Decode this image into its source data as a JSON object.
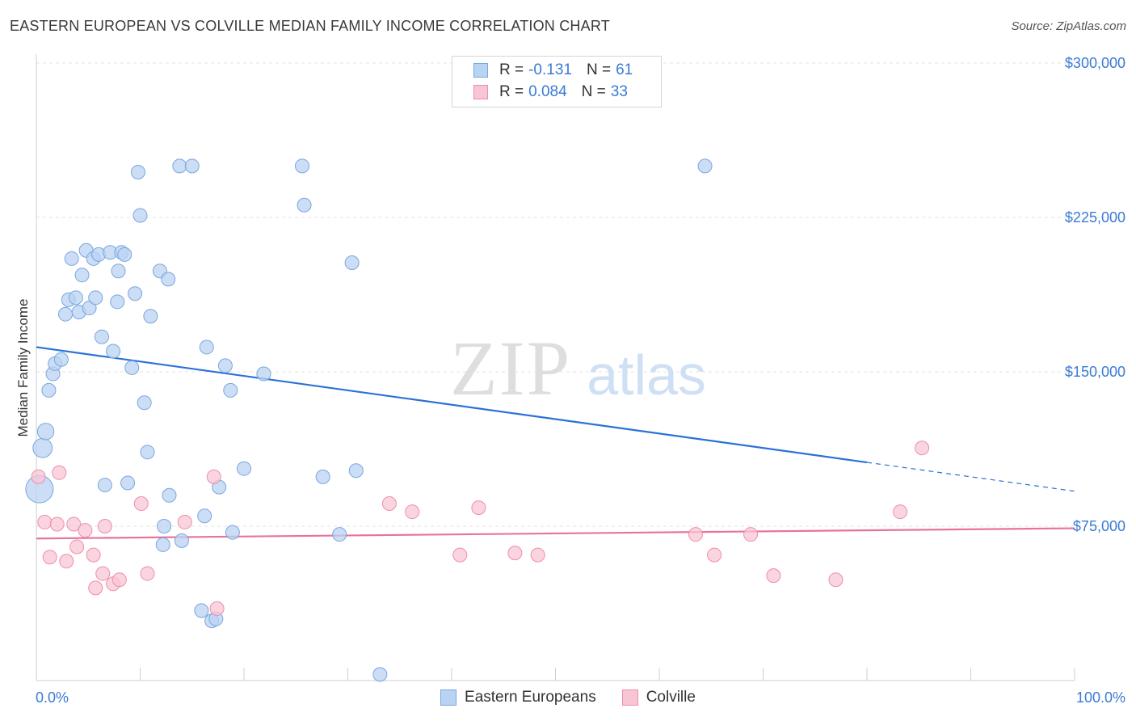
{
  "title": "EASTERN EUROPEAN VS COLVILLE MEDIAN FAMILY INCOME CORRELATION CHART",
  "source": "Source: ZipAtlas.com",
  "watermark": {
    "zip": "ZIP",
    "atlas": "atlas"
  },
  "legend": {
    "rows": [
      {
        "r_label": "R =",
        "r_value": "-0.131",
        "n_label": "N =",
        "n_value": "61"
      },
      {
        "r_label": "R =",
        "r_value": "0.084",
        "n_label": "N =",
        "n_value": "33"
      }
    ]
  },
  "bottom_legend": [
    "Eastern Europeans",
    "Colville"
  ],
  "colors": {
    "blue_fill": "#b9d3f3",
    "blue_stroke": "#7aa6df",
    "blue_line": "#2a72d6",
    "pink_fill": "#f8c5d4",
    "pink_stroke": "#ec8fab",
    "pink_line": "#e8739a",
    "tick_text": "#3a7bd5"
  },
  "chart_data": {
    "type": "scatter",
    "xlabel": "",
    "ylabel": "Median Family Income",
    "x_tick_labels": [
      "0.0%",
      "100.0%"
    ],
    "y_tick_labels": [
      "$75,000",
      "$150,000",
      "$225,000",
      "$300,000"
    ],
    "y_ticks": [
      75000,
      150000,
      225000,
      300000
    ],
    "xlim": [
      0,
      100
    ],
    "ylim": [
      0,
      305000
    ],
    "grid": true,
    "legend_position": "top-center",
    "series": [
      {
        "name": "Eastern Europeans",
        "color": "#b9d3f3",
        "trend": {
          "x": [
            0,
            80
          ],
          "y": [
            162000,
            106000
          ],
          "dashed_to": [
            100,
            92000
          ]
        },
        "points": [
          {
            "x": 0.3,
            "y": 93000,
            "s": 2
          },
          {
            "x": 0.6,
            "y": 113000,
            "s": 1.4
          },
          {
            "x": 0.9,
            "y": 121000,
            "s": 1.2
          },
          {
            "x": 1.2,
            "y": 141000
          },
          {
            "x": 1.6,
            "y": 149000
          },
          {
            "x": 1.8,
            "y": 154000
          },
          {
            "x": 2.4,
            "y": 156000
          },
          {
            "x": 2.8,
            "y": 178000
          },
          {
            "x": 3.1,
            "y": 185000
          },
          {
            "x": 3.4,
            "y": 205000
          },
          {
            "x": 3.8,
            "y": 186000
          },
          {
            "x": 4.1,
            "y": 179000
          },
          {
            "x": 4.4,
            "y": 197000
          },
          {
            "x": 4.8,
            "y": 209000
          },
          {
            "x": 5.1,
            "y": 181000
          },
          {
            "x": 5.5,
            "y": 205000
          },
          {
            "x": 5.7,
            "y": 186000
          },
          {
            "x": 6.0,
            "y": 207000
          },
          {
            "x": 6.3,
            "y": 167000
          },
          {
            "x": 6.6,
            "y": 95000
          },
          {
            "x": 7.1,
            "y": 208000
          },
          {
            "x": 7.4,
            "y": 160000
          },
          {
            "x": 7.8,
            "y": 184000
          },
          {
            "x": 7.9,
            "y": 199000
          },
          {
            "x": 8.2,
            "y": 208000
          },
          {
            "x": 8.5,
            "y": 207000
          },
          {
            "x": 8.8,
            "y": 96000
          },
          {
            "x": 9.2,
            "y": 152000
          },
          {
            "x": 9.5,
            "y": 188000
          },
          {
            "x": 9.8,
            "y": 247000
          },
          {
            "x": 10.0,
            "y": 226000
          },
          {
            "x": 10.4,
            "y": 135000
          },
          {
            "x": 10.7,
            "y": 111000
          },
          {
            "x": 11.0,
            "y": 177000
          },
          {
            "x": 11.9,
            "y": 199000
          },
          {
            "x": 12.3,
            "y": 75000
          },
          {
            "x": 12.7,
            "y": 195000
          },
          {
            "x": 12.8,
            "y": 90000
          },
          {
            "x": 13.8,
            "y": 250000
          },
          {
            "x": 14.0,
            "y": 68000
          },
          {
            "x": 15.0,
            "y": 250000
          },
          {
            "x": 15.9,
            "y": 34000
          },
          {
            "x": 16.2,
            "y": 80000
          },
          {
            "x": 16.4,
            "y": 162000
          },
          {
            "x": 16.9,
            "y": 29000
          },
          {
            "x": 17.3,
            "y": 30000
          },
          {
            "x": 17.6,
            "y": 94000
          },
          {
            "x": 18.2,
            "y": 153000
          },
          {
            "x": 18.7,
            "y": 141000
          },
          {
            "x": 18.9,
            "y": 72000
          },
          {
            "x": 20.0,
            "y": 103000
          },
          {
            "x": 21.9,
            "y": 149000
          },
          {
            "x": 25.6,
            "y": 250000
          },
          {
            "x": 25.8,
            "y": 231000
          },
          {
            "x": 27.6,
            "y": 99000
          },
          {
            "x": 29.2,
            "y": 71000
          },
          {
            "x": 30.4,
            "y": 203000
          },
          {
            "x": 30.8,
            "y": 102000
          },
          {
            "x": 33.1,
            "y": 3000
          },
          {
            "x": 64.4,
            "y": 250000
          },
          {
            "x": 12.2,
            "y": 66000
          }
        ]
      },
      {
        "name": "Colville",
        "color": "#f8c5d4",
        "trend": {
          "x": [
            0,
            100
          ],
          "y": [
            69000,
            74000
          ]
        },
        "points": [
          {
            "x": 0.2,
            "y": 99000
          },
          {
            "x": 0.8,
            "y": 77000
          },
          {
            "x": 1.3,
            "y": 60000
          },
          {
            "x": 2.0,
            "y": 76000
          },
          {
            "x": 2.2,
            "y": 101000
          },
          {
            "x": 2.9,
            "y": 58000
          },
          {
            "x": 3.6,
            "y": 76000
          },
          {
            "x": 3.9,
            "y": 65000
          },
          {
            "x": 4.7,
            "y": 73000
          },
          {
            "x": 5.5,
            "y": 61000
          },
          {
            "x": 5.7,
            "y": 45000
          },
          {
            "x": 6.4,
            "y": 52000
          },
          {
            "x": 6.6,
            "y": 75000
          },
          {
            "x": 7.4,
            "y": 47000
          },
          {
            "x": 8.0,
            "y": 49000
          },
          {
            "x": 10.1,
            "y": 86000
          },
          {
            "x": 10.7,
            "y": 52000
          },
          {
            "x": 14.3,
            "y": 77000
          },
          {
            "x": 17.1,
            "y": 99000
          },
          {
            "x": 17.4,
            "y": 35000
          },
          {
            "x": 34.0,
            "y": 86000
          },
          {
            "x": 36.2,
            "y": 82000
          },
          {
            "x": 40.8,
            "y": 61000
          },
          {
            "x": 42.6,
            "y": 84000
          },
          {
            "x": 46.1,
            "y": 62000
          },
          {
            "x": 48.3,
            "y": 61000
          },
          {
            "x": 63.5,
            "y": 71000
          },
          {
            "x": 65.3,
            "y": 61000
          },
          {
            "x": 68.8,
            "y": 71000
          },
          {
            "x": 71.0,
            "y": 51000
          },
          {
            "x": 77.0,
            "y": 49000
          },
          {
            "x": 83.2,
            "y": 82000
          },
          {
            "x": 85.3,
            "y": 113000
          }
        ]
      }
    ]
  }
}
